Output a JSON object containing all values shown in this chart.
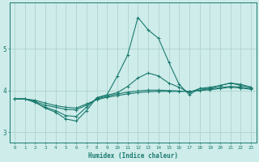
{
  "xlabel": "Humidex (Indice chaleur)",
  "bg_color": "#ceecea",
  "line_color": "#1a7a6e",
  "grid_color": "#aed4d0",
  "x_values": [
    0,
    1,
    2,
    3,
    4,
    5,
    6,
    7,
    8,
    9,
    10,
    11,
    12,
    13,
    14,
    15,
    16,
    17,
    18,
    19,
    20,
    21,
    22,
    23
  ],
  "series": [
    [
      3.8,
      3.8,
      3.72,
      3.58,
      3.48,
      3.32,
      3.27,
      3.52,
      3.83,
      3.9,
      4.35,
      4.85,
      5.75,
      5.45,
      5.25,
      4.68,
      4.15,
      3.9,
      4.05,
      4.05,
      4.12,
      4.18,
      4.12,
      4.08
    ],
    [
      3.8,
      3.8,
      3.72,
      3.6,
      3.52,
      3.4,
      3.38,
      3.6,
      3.82,
      3.89,
      3.95,
      4.1,
      4.3,
      4.42,
      4.35,
      4.18,
      4.08,
      3.95,
      4.05,
      4.08,
      4.12,
      4.18,
      4.15,
      4.08
    ],
    [
      3.8,
      3.8,
      3.74,
      3.65,
      3.6,
      3.55,
      3.54,
      3.65,
      3.8,
      3.86,
      3.92,
      3.96,
      3.99,
      4.01,
      4.01,
      4.0,
      3.99,
      3.98,
      4.01,
      4.04,
      4.07,
      4.1,
      4.08,
      4.05
    ],
    [
      3.8,
      3.8,
      3.77,
      3.7,
      3.64,
      3.6,
      3.58,
      3.68,
      3.78,
      3.84,
      3.88,
      3.92,
      3.95,
      3.97,
      3.98,
      3.98,
      3.98,
      3.98,
      4.0,
      4.02,
      4.05,
      4.08,
      4.06,
      4.03
    ]
  ],
  "ylim": [
    2.75,
    6.1
  ],
  "yticks": [
    3,
    4,
    5
  ],
  "xlim": [
    -0.5,
    23.5
  ]
}
